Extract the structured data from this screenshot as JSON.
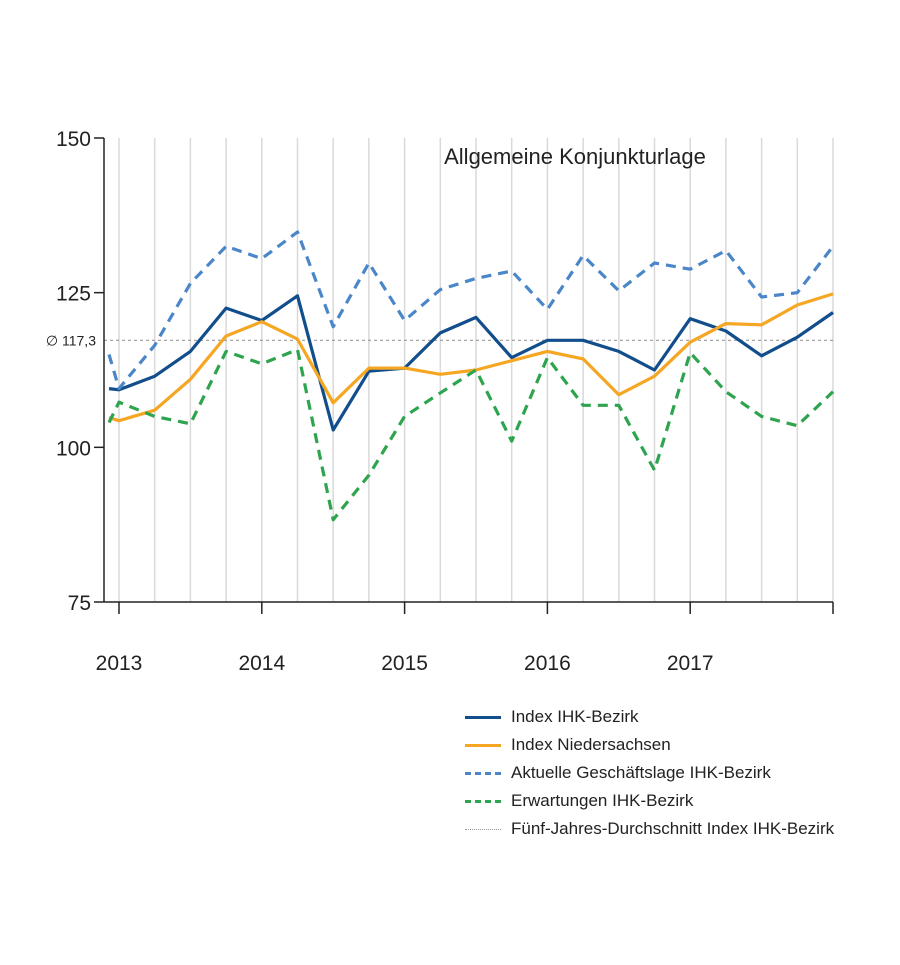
{
  "chart_data": {
    "type": "line",
    "title": "Allgemeine Konjunkturlage",
    "xlabel": "",
    "ylabel": "",
    "ylim": [
      75,
      150
    ],
    "yticks": [
      75,
      100,
      125,
      150
    ],
    "year_labels": [
      {
        "label": "2013",
        "x": 2013.0
      },
      {
        "label": "2014",
        "x": 2014.0
      },
      {
        "label": "2015",
        "x": 2015.0
      },
      {
        "label": "2016",
        "x": 2016.0
      },
      {
        "label": "2017",
        "x": 2017.0
      }
    ],
    "xlim": [
      2013.0,
      2018.0
    ],
    "x": [
      2013.0,
      2013.25,
      2013.5,
      2013.75,
      2014.0,
      2014.25,
      2014.5,
      2014.75,
      2015.0,
      2015.25,
      2015.5,
      2015.75,
      2016.0,
      2016.25,
      2016.5,
      2016.75,
      2017.0,
      2017.25,
      2017.5,
      2017.75,
      2018.0
    ],
    "average": {
      "value": 117.3,
      "label": "∅ 117,3"
    },
    "series": [
      {
        "name": "Index IHK-Bezirk",
        "color": "#124e8c",
        "dash": "solid",
        "points": [
          [
            2012.93,
            109.5
          ],
          [
            2013.0,
            109.3
          ],
          [
            2013.25,
            111.5
          ],
          [
            2013.5,
            115.5
          ],
          [
            2013.75,
            122.5
          ],
          [
            2014.0,
            120.5
          ],
          [
            2014.25,
            124.5
          ],
          [
            2014.5,
            102.8
          ],
          [
            2014.75,
            112.3
          ],
          [
            2015.0,
            112.8
          ],
          [
            2015.25,
            118.5
          ],
          [
            2015.5,
            121.0
          ],
          [
            2015.75,
            114.5
          ],
          [
            2016.0,
            117.3
          ],
          [
            2016.25,
            117.3
          ],
          [
            2016.5,
            115.5
          ],
          [
            2016.75,
            112.5
          ],
          [
            2017.0,
            120.8
          ],
          [
            2017.25,
            118.8
          ],
          [
            2017.5,
            114.8
          ],
          [
            2017.75,
            117.8
          ],
          [
            2018.0,
            121.8
          ]
        ]
      },
      {
        "name": "Index Niedersachsen",
        "color": "#f5a623",
        "dash": "solid",
        "points": [
          [
            2012.93,
            104.8
          ],
          [
            2013.0,
            104.3
          ],
          [
            2013.25,
            106.0
          ],
          [
            2013.5,
            111.0
          ],
          [
            2013.75,
            118.0
          ],
          [
            2014.0,
            120.3
          ],
          [
            2014.25,
            117.5
          ],
          [
            2014.5,
            107.2
          ],
          [
            2014.75,
            112.8
          ],
          [
            2015.0,
            112.8
          ],
          [
            2015.25,
            111.8
          ],
          [
            2015.5,
            112.5
          ],
          [
            2015.75,
            114.0
          ],
          [
            2016.0,
            115.5
          ],
          [
            2016.25,
            114.3
          ],
          [
            2016.5,
            108.5
          ],
          [
            2016.75,
            111.5
          ],
          [
            2017.0,
            117.0
          ],
          [
            2017.25,
            120.0
          ],
          [
            2017.5,
            119.8
          ],
          [
            2017.75,
            123.0
          ],
          [
            2018.0,
            124.8
          ]
        ]
      },
      {
        "name": "Aktuelle Geschäftslage IHK-Bezirk",
        "color": "#4a86c8",
        "dash": "long",
        "points": [
          [
            2012.93,
            115.0
          ],
          [
            2013.0,
            109.5
          ],
          [
            2013.25,
            116.5
          ],
          [
            2013.5,
            126.5
          ],
          [
            2013.75,
            132.5
          ],
          [
            2014.0,
            130.5
          ],
          [
            2014.25,
            134.8
          ],
          [
            2014.5,
            119.5
          ],
          [
            2014.75,
            129.8
          ],
          [
            2015.0,
            120.5
          ],
          [
            2015.25,
            125.5
          ],
          [
            2015.5,
            127.3
          ],
          [
            2015.75,
            128.5
          ],
          [
            2016.0,
            122.3
          ],
          [
            2016.25,
            131.0
          ],
          [
            2016.5,
            125.3
          ],
          [
            2016.75,
            129.8
          ],
          [
            2017.0,
            128.8
          ],
          [
            2017.25,
            131.8
          ],
          [
            2017.5,
            124.3
          ],
          [
            2017.75,
            125.0
          ],
          [
            2018.0,
            132.5
          ]
        ]
      },
      {
        "name": "Erwartungen IHK-Bezirk",
        "color": "#2ea44f",
        "dash": "long",
        "points": [
          [
            2012.93,
            104.0
          ],
          [
            2013.0,
            107.3
          ],
          [
            2013.25,
            105.0
          ],
          [
            2013.5,
            103.8
          ],
          [
            2013.75,
            115.5
          ],
          [
            2014.0,
            113.5
          ],
          [
            2014.25,
            115.8
          ],
          [
            2014.5,
            88.3
          ],
          [
            2014.75,
            95.5
          ],
          [
            2015.0,
            105.0
          ],
          [
            2015.25,
            108.8
          ],
          [
            2015.5,
            112.5
          ],
          [
            2015.75,
            101.0
          ],
          [
            2016.0,
            114.5
          ],
          [
            2016.25,
            106.8
          ],
          [
            2016.5,
            106.8
          ],
          [
            2016.75,
            96.3
          ],
          [
            2017.0,
            115.3
          ],
          [
            2017.25,
            109.0
          ],
          [
            2017.5,
            105.0
          ],
          [
            2017.75,
            103.5
          ],
          [
            2018.0,
            109.0
          ]
        ]
      }
    ],
    "legend_extra": {
      "name": "Fünf-Jahres-Durchschnitt Index IHK-Bezirk",
      "color": "#9a9a9a",
      "dash": "dotted"
    },
    "legend_position": "bottom-right",
    "grid": "vertical",
    "colors": {
      "axis": "#222222",
      "grid": "#d9d9d9"
    }
  }
}
